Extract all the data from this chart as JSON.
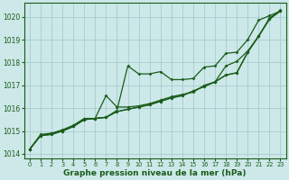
{
  "bg_color": "#cce8e8",
  "grid_color": "#a0c8c8",
  "line_color": "#1a5c1a",
  "marker_color": "#1a5c1a",
  "xlabel": "Graphe pression niveau de la mer (hPa)",
  "xlabel_color": "#1a5c1a",
  "ylim": [
    1013.8,
    1020.6
  ],
  "xlim": [
    -0.5,
    23.5
  ],
  "yticks": [
    1014,
    1015,
    1016,
    1017,
    1018,
    1019,
    1020
  ],
  "xticks": [
    0,
    1,
    2,
    3,
    4,
    5,
    6,
    7,
    8,
    9,
    10,
    11,
    12,
    13,
    14,
    15,
    16,
    17,
    18,
    19,
    20,
    21,
    22,
    23
  ],
  "series": [
    [
      1014.2,
      1014.8,
      1014.9,
      1015.0,
      1015.2,
      1015.5,
      1015.55,
      1015.6,
      1015.9,
      1017.85,
      1017.5,
      1017.5,
      1017.6,
      1017.25,
      1017.25,
      1017.3,
      1017.8,
      1017.85,
      1018.4,
      1018.45,
      1019.0,
      1019.85,
      1020.05,
      1020.25
    ],
    [
      1014.2,
      1014.85,
      1014.9,
      1015.05,
      1015.25,
      1015.55,
      1015.55,
      1016.55,
      1016.05,
      1016.05,
      1016.1,
      1016.2,
      1016.35,
      1016.5,
      1016.6,
      1016.7,
      1017.0,
      1017.15,
      1017.85,
      1018.05,
      1018.5,
      1019.15,
      1019.95,
      1020.25
    ],
    [
      1014.2,
      1014.8,
      1014.85,
      1015.0,
      1015.2,
      1015.5,
      1015.55,
      1015.6,
      1015.85,
      1015.95,
      1016.05,
      1016.15,
      1016.3,
      1016.45,
      1016.55,
      1016.75,
      1016.95,
      1017.15,
      1017.45,
      1017.55,
      1018.45,
      1019.15,
      1019.9,
      1020.25
    ],
    [
      1014.2,
      1014.8,
      1014.85,
      1015.0,
      1015.2,
      1015.5,
      1015.55,
      1015.6,
      1015.85,
      1015.95,
      1016.05,
      1016.15,
      1016.3,
      1016.45,
      1016.55,
      1016.75,
      1016.95,
      1017.15,
      1017.45,
      1017.55,
      1018.45,
      1019.15,
      1019.9,
      1020.3
    ]
  ]
}
